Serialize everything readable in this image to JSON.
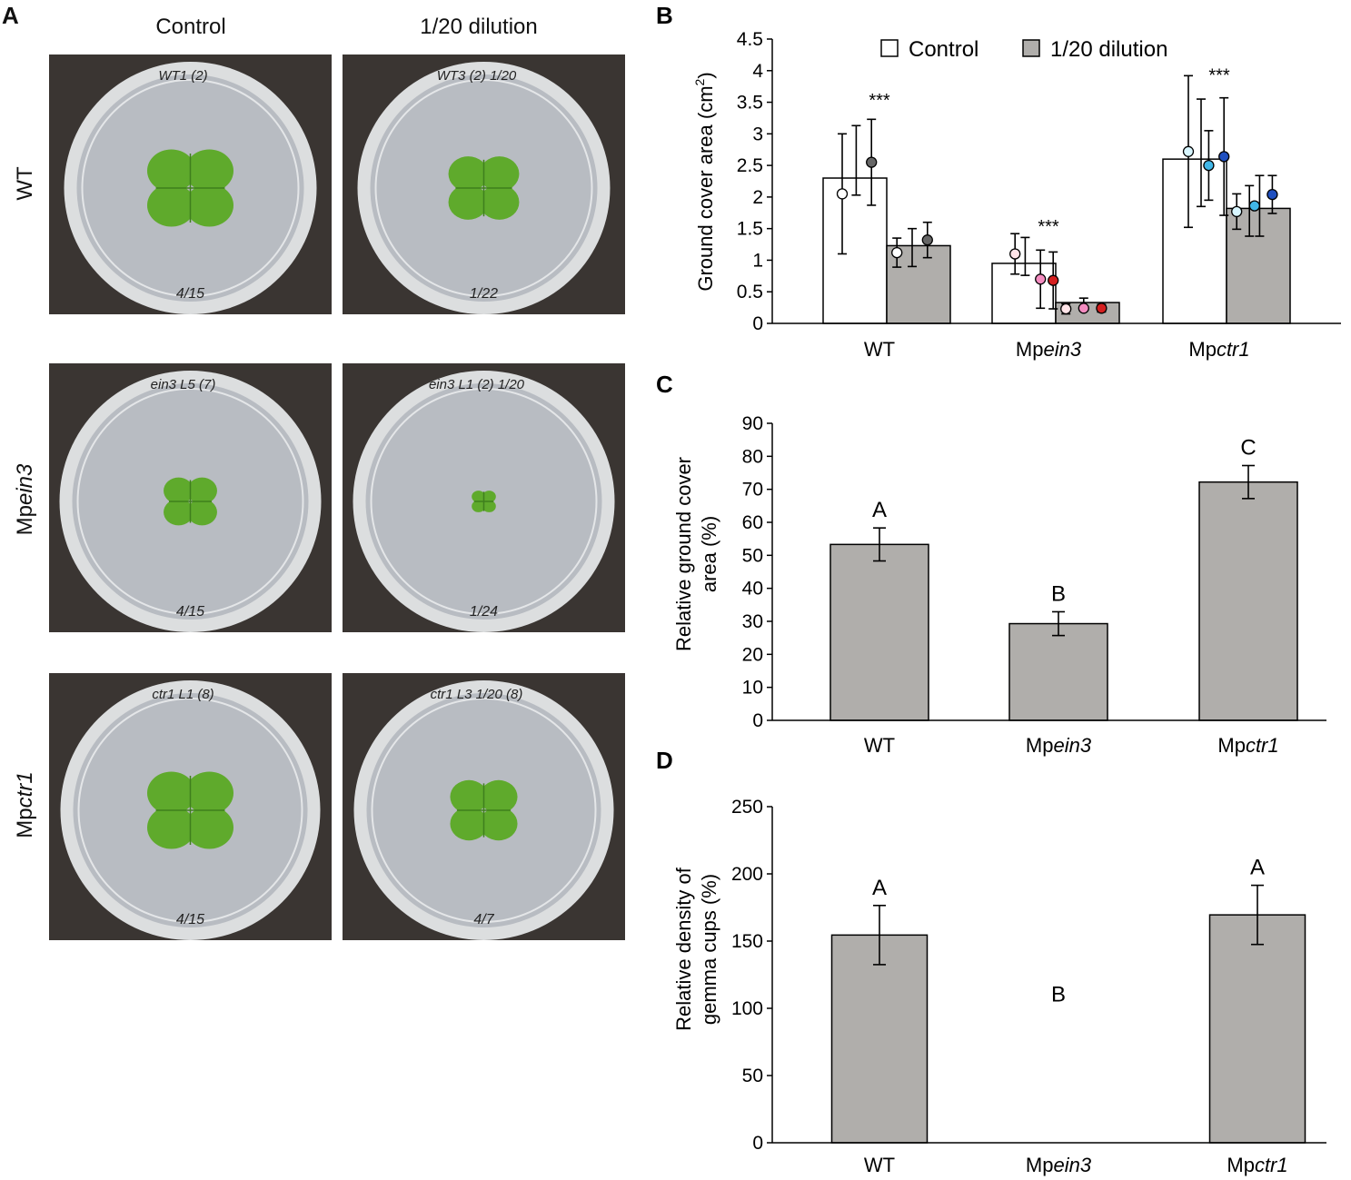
{
  "panel_a": {
    "letter": "A",
    "columns": [
      "Control",
      "1/20 dilution"
    ],
    "rows": [
      {
        "prefix": "",
        "italic": "",
        "plain": "WT",
        "plates": [
          {
            "top_note": "WT1 (2)",
            "bottom_note": "4/15"
          },
          {
            "top_note": "WT3 (2) 1/20",
            "bottom_note": "1/22"
          }
        ]
      },
      {
        "prefix": "Mp",
        "italic": "ein3",
        "plain": "",
        "plates": [
          {
            "top_note": "ein3 L5 (7)",
            "bottom_note": "4/15"
          },
          {
            "top_note": "ein3 L1 (2) 1/20",
            "bottom_note": "1/24"
          }
        ]
      },
      {
        "prefix": "Mp",
        "italic": "ctr1",
        "plain": "",
        "plates": [
          {
            "top_note": "ctr1 L1 (8)",
            "bottom_note": "4/15"
          },
          {
            "top_note": "ctr1 L3 1/20 (8)",
            "bottom_note": "4/7"
          }
        ]
      }
    ],
    "colors": {
      "background": "#3a3532",
      "agar": "#b8bcc2",
      "rim": "#dcdedf",
      "plant": "#5faa2c",
      "plant_dark": "#3f7f1d"
    }
  },
  "chart_data": [
    {
      "panel": "B",
      "type": "bar",
      "ylabel_main": "Ground cover area (cm",
      "ylabel_sup": "2",
      "ylabel_end": ")",
      "ylim": [
        0,
        4.5
      ],
      "yticks": [
        "0",
        "0.5",
        "1",
        "1.5",
        "2",
        "2.5",
        "3",
        "3.5",
        "4",
        "4.5"
      ],
      "ytick_values": [
        0,
        0.5,
        1,
        1.5,
        2,
        2.5,
        3,
        3.5,
        4,
        4.5
      ],
      "categories": [
        {
          "prefix": "",
          "italic": "",
          "plain": "WT"
        },
        {
          "prefix": "Mp",
          "italic": "ein3",
          "plain": ""
        },
        {
          "prefix": "Mp",
          "italic": "ctr1",
          "plain": ""
        }
      ],
      "legend_position": "top",
      "series": [
        {
          "name": "Control",
          "color": "#ffffff",
          "values": [
            2.3,
            0.95,
            2.6
          ],
          "points": [
            [
              {
                "y": 2.05,
                "err": 0.95
              },
              {
                "y": 2.55,
                "err": 0.68
              }
            ],
            [
              {
                "y": 1.1,
                "err": 0.32
              },
              {
                "y": 0.68,
                "err": 0.47
              }
            ],
            [
              {
                "y": 2.72,
                "err": 1.2
              },
              {
                "y": 2.62,
                "err": 0.95
              }
            ]
          ]
        },
        {
          "name": "1/20 dilution",
          "color": "#b0aeab",
          "values": [
            1.23,
            0.33,
            1.82
          ],
          "points": [
            [
              {
                "y": 1.12,
                "err": 0.23
              },
              {
                "y": 1.32,
                "err": 0.28
              }
            ],
            [
              {
                "y": 0.23,
                "err": 0.09
              },
              {
                "y": 0.24,
                "err": 0.1
              }
            ],
            [
              {
                "y": 1.77,
                "err": 0.28
              },
              {
                "y": 2.03,
                "err": 0.3
              }
            ]
          ]
        }
      ],
      "dots": [
        [
          {
            "x": -0.35,
            "y": 2.05,
            "color": "#ffffff"
          },
          {
            "x": -0.12,
            "y": 2.55,
            "color": "#666666"
          },
          {
            "x": 0.08,
            "y": 1.12,
            "color": "#ffffff"
          },
          {
            "x": 0.32,
            "y": 1.32,
            "color": "#666666"
          }
        ],
        [
          {
            "x": -0.32,
            "y": 1.1,
            "color": "#ffe4e8"
          },
          {
            "x": -0.12,
            "y": 0.7,
            "color": "#f48cc0"
          },
          {
            "x": -0.02,
            "y": 0.68,
            "color": "#d41f1f"
          },
          {
            "x": 0.08,
            "y": 0.23,
            "color": "#ffe4e8"
          },
          {
            "x": 0.22,
            "y": 0.24,
            "color": "#f48cc0"
          },
          {
            "x": 0.36,
            "y": 0.24,
            "color": "#d41f1f"
          }
        ],
        [
          {
            "x": -0.3,
            "y": 2.72,
            "color": "#d8f6ff"
          },
          {
            "x": -0.14,
            "y": 2.5,
            "color": "#41b7e8"
          },
          {
            "x": -0.02,
            "y": 2.64,
            "color": "#1f4fbf"
          },
          {
            "x": 0.08,
            "y": 1.77,
            "color": "#d8f6ff"
          },
          {
            "x": 0.22,
            "y": 1.86,
            "color": "#41b7e8"
          },
          {
            "x": 0.36,
            "y": 2.04,
            "color": "#1f4fbf"
          }
        ]
      ],
      "error_caps": [
        [
          {
            "x": -0.35,
            "y": 2.05,
            "err": 0.95
          },
          {
            "x": -0.24,
            "y": 2.58,
            "err": 0.55
          },
          {
            "x": -0.12,
            "y": 2.55,
            "err": 0.68
          },
          {
            "x": 0.08,
            "y": 1.12,
            "err": 0.23
          },
          {
            "x": 0.2,
            "y": 1.2,
            "err": 0.3
          },
          {
            "x": 0.32,
            "y": 1.32,
            "err": 0.28
          }
        ],
        [
          {
            "x": -0.32,
            "y": 1.1,
            "err": 0.32
          },
          {
            "x": -0.24,
            "y": 1.06,
            "err": 0.3
          },
          {
            "x": -0.12,
            "y": 0.7,
            "err": 0.46
          },
          {
            "x": -0.02,
            "y": 0.68,
            "err": 0.45
          },
          {
            "x": 0.08,
            "y": 0.23,
            "err": 0.08
          },
          {
            "x": 0.22,
            "y": 0.3,
            "err": 0.1
          },
          {
            "x": 0.36,
            "y": 0.24,
            "err": 0.06
          }
        ],
        [
          {
            "x": -0.3,
            "y": 2.72,
            "err": 1.2
          },
          {
            "x": -0.2,
            "y": 2.7,
            "err": 0.85
          },
          {
            "x": -0.14,
            "y": 2.5,
            "err": 0.55
          },
          {
            "x": -0.02,
            "y": 2.64,
            "err": 0.93
          },
          {
            "x": 0.08,
            "y": 1.77,
            "err": 0.28
          },
          {
            "x": 0.18,
            "y": 1.78,
            "err": 0.4
          },
          {
            "x": 0.26,
            "y": 1.86,
            "err": 0.48
          },
          {
            "x": 0.36,
            "y": 2.04,
            "err": 0.3
          }
        ]
      ],
      "annotations": [
        {
          "category": 0,
          "y": 3.55,
          "text": "***"
        },
        {
          "category": 1,
          "y": 1.55,
          "text": "***"
        },
        {
          "category": 2,
          "y": 3.95,
          "text": "***"
        }
      ]
    },
    {
      "panel": "C",
      "type": "bar",
      "ylabel_lines": [
        "Relative ground cover",
        "area (%)"
      ],
      "ylim": [
        0,
        90
      ],
      "yticks": [
        "0",
        "10",
        "20",
        "30",
        "40",
        "50",
        "60",
        "70",
        "80",
        "90"
      ],
      "ytick_values": [
        0,
        10,
        20,
        30,
        40,
        50,
        60,
        70,
        80,
        90
      ],
      "categories": [
        {
          "prefix": "",
          "italic": "",
          "plain": "WT"
        },
        {
          "prefix": "Mp",
          "italic": "ein3",
          "plain": ""
        },
        {
          "prefix": "Mp",
          "italic": "ctr1",
          "plain": ""
        }
      ],
      "values": [
        53.3,
        29.3,
        72.2
      ],
      "errors": [
        5.0,
        3.6,
        5.0
      ],
      "letters": [
        "A",
        "B",
        "C"
      ],
      "bar_color": "#b0aeab"
    },
    {
      "panel": "D",
      "type": "bar",
      "ylabel_lines": [
        "Relative density of",
        "gemma cups (%)"
      ],
      "ylim": [
        0,
        250
      ],
      "yticks": [
        "0",
        "50",
        "100",
        "150",
        "200",
        "250"
      ],
      "ytick_values": [
        0,
        50,
        100,
        150,
        200,
        250
      ],
      "categories": [
        {
          "prefix": "",
          "italic": "",
          "plain": "WT"
        },
        {
          "prefix": "Mp",
          "italic": "ein3",
          "plain": ""
        },
        {
          "prefix": "Mp",
          "italic": "ctr1",
          "plain": ""
        }
      ],
      "values": [
        154.5,
        0,
        169.5
      ],
      "errors": [
        22,
        0,
        22
      ],
      "letters": [
        "A",
        "B",
        "A"
      ],
      "bar_color": "#b0aeab"
    }
  ]
}
